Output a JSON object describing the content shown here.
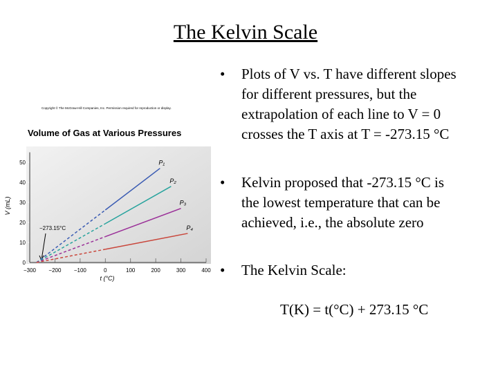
{
  "header": {
    "title": "The Kelvin Scale"
  },
  "bullets": [
    {
      "lines": [
        "Plots of V vs. T have different slopes",
        "for different pressures, but the",
        "extrapolation of each line to V = 0",
        "crosses the T axis at T = -273.15 °C"
      ]
    },
    {
      "lines": [
        "Kelvin proposed that -273.15 °C is",
        "the lowest temperature that can be",
        "achieved, i.e., the absolute zero"
      ]
    },
    {
      "lines": [
        "The Kelvin Scale:"
      ]
    }
  ],
  "formula": "T(K) = t(°C) + 273.15 °C",
  "chart_data": {
    "type": "line",
    "copyright": "Copyright © The McGraw-Hill Companies, Inc. Permission required for reproduction or display.",
    "title": "Volume of Gas at Various Pressures",
    "x_label": "t (°C)",
    "y_label": "V (mL)",
    "annotation": "−273.15°C",
    "xlim": [
      -300,
      400
    ],
    "ylim": [
      0,
      55
    ],
    "xticks": [
      {
        "value": -300,
        "label": "−300"
      },
      {
        "value": -200,
        "label": "−200"
      },
      {
        "value": -100,
        "label": "−100"
      },
      0,
      100,
      200,
      300,
      400
    ],
    "yticks": [
      0,
      10,
      20,
      30,
      40,
      50
    ],
    "series": [
      {
        "name": "P₁",
        "color": "#3b5cb3",
        "x": [
          -273.15,
          0,
          217
        ],
        "values": [
          0,
          26.2,
          47
        ]
      },
      {
        "name": "P₂",
        "color": "#27a39d",
        "x": [
          -273.15,
          0,
          261
        ],
        "values": [
          0,
          19.4,
          38
        ]
      },
      {
        "name": "P₃",
        "color": "#9a2f98",
        "x": [
          -273.15,
          0,
          300
        ],
        "values": [
          0,
          12.9,
          27
        ]
      },
      {
        "name": "P₄",
        "color": "#c9463b",
        "x": [
          -273.15,
          0,
          327
        ],
        "values": [
          0,
          6.6,
          14.5
        ]
      }
    ]
  }
}
